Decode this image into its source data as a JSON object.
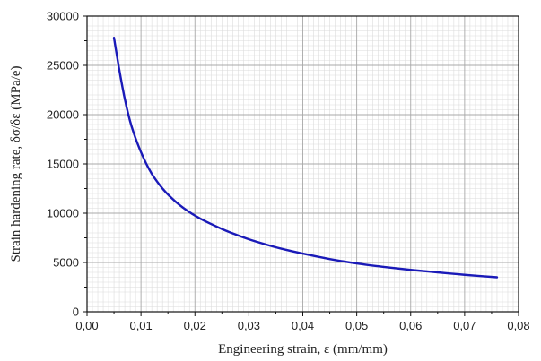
{
  "chart_data": {
    "type": "line",
    "title": "",
    "xlabel": "Engineering strain, ε (mm/mm)",
    "ylabel": "Strain hardening rate, δσ/δε (MPa/e)",
    "xlim": [
      0.0,
      0.08
    ],
    "ylim": [
      0,
      30000
    ],
    "x_ticks": [
      "0,00",
      "0,01",
      "0,02",
      "0,03",
      "0,04",
      "0,05",
      "0,06",
      "0,07",
      "0,08"
    ],
    "y_ticks": [
      "0",
      "5000",
      "10000",
      "15000",
      "20000",
      "25000",
      "30000"
    ],
    "grid": true,
    "legend": "none",
    "series": [
      {
        "color": "#1a1ab8",
        "points": [
          [
            0.005,
            27800
          ],
          [
            0.006,
            24500
          ],
          [
            0.007,
            21600
          ],
          [
            0.008,
            19300
          ],
          [
            0.009,
            17600
          ],
          [
            0.01,
            16200
          ],
          [
            0.011,
            15000
          ],
          [
            0.012,
            14000
          ],
          [
            0.013,
            13200
          ],
          [
            0.014,
            12500
          ],
          [
            0.015,
            11900
          ],
          [
            0.017,
            10900
          ],
          [
            0.019,
            10100
          ],
          [
            0.021,
            9450
          ],
          [
            0.023,
            8900
          ],
          [
            0.025,
            8400
          ],
          [
            0.027,
            7950
          ],
          [
            0.03,
            7350
          ],
          [
            0.033,
            6850
          ],
          [
            0.036,
            6400
          ],
          [
            0.04,
            5900
          ],
          [
            0.045,
            5350
          ],
          [
            0.05,
            4900
          ],
          [
            0.055,
            4550
          ],
          [
            0.06,
            4250
          ],
          [
            0.065,
            4000
          ],
          [
            0.07,
            3750
          ],
          [
            0.076,
            3500
          ]
        ]
      }
    ]
  }
}
